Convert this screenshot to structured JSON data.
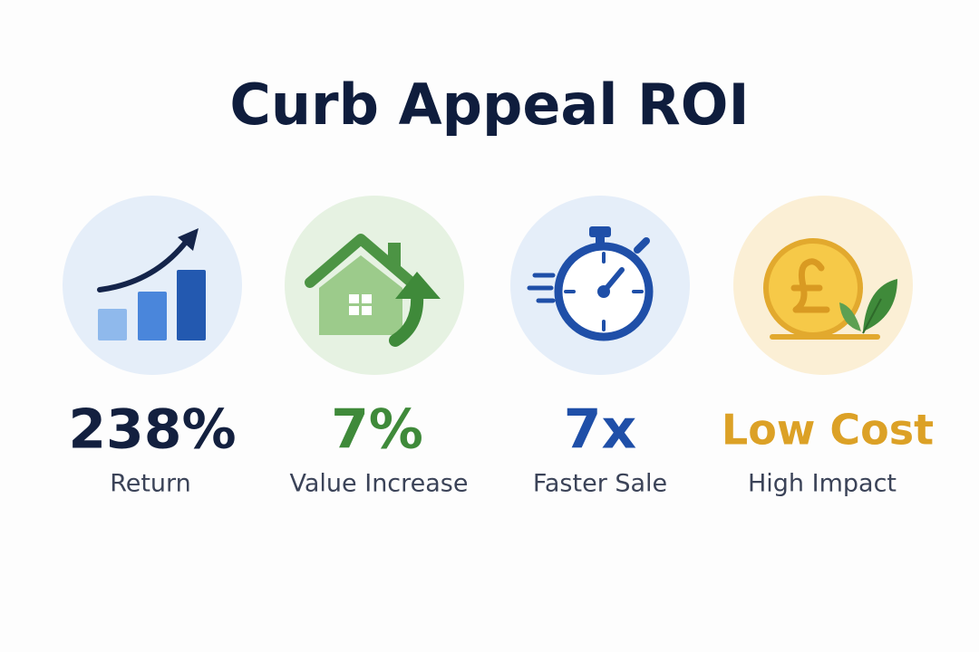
{
  "header": {
    "title": "Curb Appeal ROI"
  },
  "stats": [
    {
      "value": "238%",
      "label": "Return"
    },
    {
      "value": "7%",
      "label": "Value Increase"
    },
    {
      "value": "7x",
      "label": "Faster Sale"
    },
    {
      "value": "Low Cost",
      "label": "High Impact"
    }
  ]
}
